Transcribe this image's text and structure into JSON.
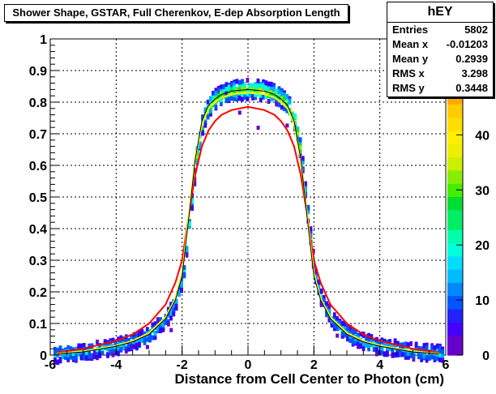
{
  "chart_data": {
    "type": "heatmap",
    "title": "Shower Shape, GSTAR, Full Cherenkov, E-dep Absorption Length",
    "xlabel": "Distance from Cell Center to Photon (cm)",
    "ylabel": "",
    "xlim": [
      -6,
      6
    ],
    "ylim": [
      0,
      1
    ],
    "zlim": [
      0,
      48
    ],
    "grid": true,
    "x_ticks": [
      -6,
      -4,
      -2,
      0,
      2,
      4,
      6
    ],
    "x_tick_labels": [
      "-6",
      "-4",
      "-2",
      "0",
      "2",
      "4",
      "6"
    ],
    "y_ticks": [
      0,
      0.1,
      0.2,
      0.3,
      0.4,
      0.5,
      0.6,
      0.7,
      0.8,
      0.9,
      1
    ],
    "y_tick_labels": [
      "0",
      "0.1",
      "0.2",
      "0.3",
      "0.4",
      "0.5",
      "0.6",
      "0.7",
      "0.8",
      "0.9",
      "1"
    ],
    "z_ticks": [
      0,
      10,
      20,
      30,
      40
    ],
    "z_tick_labels": [
      "0",
      "10",
      "20",
      "30",
      "40"
    ],
    "curves": [
      {
        "color": "#ff0000",
        "x": [
          -5.8,
          -5,
          -4,
          -3.5,
          -3,
          -2.5,
          -2.2,
          -2,
          -1.8,
          -1.6,
          -1.4,
          -1.2,
          -1,
          -0.8,
          -0.5,
          0,
          0.5,
          0.8,
          1,
          1.2,
          1.4,
          1.6,
          1.8,
          2,
          2.2,
          2.5,
          3,
          3.5,
          4,
          5,
          5.8
        ],
        "y": [
          0.008,
          0.02,
          0.045,
          0.065,
          0.1,
          0.16,
          0.23,
          0.3,
          0.44,
          0.57,
          0.66,
          0.71,
          0.74,
          0.76,
          0.775,
          0.785,
          0.775,
          0.76,
          0.74,
          0.71,
          0.66,
          0.57,
          0.44,
          0.3,
          0.23,
          0.16,
          0.1,
          0.065,
          0.045,
          0.02,
          0.008
        ]
      },
      {
        "color": "#ffff00",
        "x": [
          -5.8,
          -5,
          -4,
          -3.5,
          -3,
          -2.5,
          -2.2,
          -2,
          -1.8,
          -1.6,
          -1.4,
          -1.2,
          -1,
          -0.8,
          -0.5,
          0,
          0.5,
          0.8,
          1,
          1.2,
          1.4,
          1.6,
          1.8,
          2,
          2.2,
          2.5,
          3,
          3.5,
          4,
          5,
          5.8
        ],
        "y": [
          0.005,
          0.012,
          0.03,
          0.045,
          0.07,
          0.12,
          0.18,
          0.26,
          0.44,
          0.62,
          0.73,
          0.78,
          0.8,
          0.815,
          0.825,
          0.83,
          0.825,
          0.815,
          0.8,
          0.78,
          0.73,
          0.62,
          0.44,
          0.26,
          0.18,
          0.12,
          0.07,
          0.045,
          0.03,
          0.012,
          0.005
        ]
      },
      {
        "color": "#000000",
        "x": [
          -5.8,
          -5,
          -4,
          -3.5,
          -3,
          -2.5,
          -2.2,
          -2,
          -1.8,
          -1.6,
          -1.4,
          -1.2,
          -1,
          -0.8,
          -0.5,
          0,
          0.5,
          0.8,
          1,
          1.2,
          1.4,
          1.6,
          1.8,
          2,
          2.2,
          2.5,
          3,
          3.5,
          4,
          5,
          5.8
        ],
        "y": [
          0.004,
          0.01,
          0.028,
          0.042,
          0.066,
          0.115,
          0.175,
          0.25,
          0.43,
          0.62,
          0.74,
          0.79,
          0.81,
          0.825,
          0.835,
          0.84,
          0.835,
          0.825,
          0.81,
          0.79,
          0.74,
          0.62,
          0.43,
          0.25,
          0.175,
          0.115,
          0.066,
          0.042,
          0.028,
          0.01,
          0.004
        ]
      }
    ],
    "band_color_scale": [
      "#6600cc",
      "#3300ff",
      "#0055ff",
      "#00aaff",
      "#00ffcc",
      "#00dd55",
      "#88ee00",
      "#eeee00",
      "#ffaa00"
    ],
    "stats": {
      "title": "hEY",
      "rows": [
        {
          "label": "Entries",
          "value": "5802"
        },
        {
          "label": "Mean x",
          "value": "-0.01203"
        },
        {
          "label": "Mean y",
          "value": "0.2939"
        },
        {
          "label": "RMS x",
          "value": "3.298"
        },
        {
          "label": "RMS y",
          "value": "0.3448"
        }
      ]
    }
  }
}
